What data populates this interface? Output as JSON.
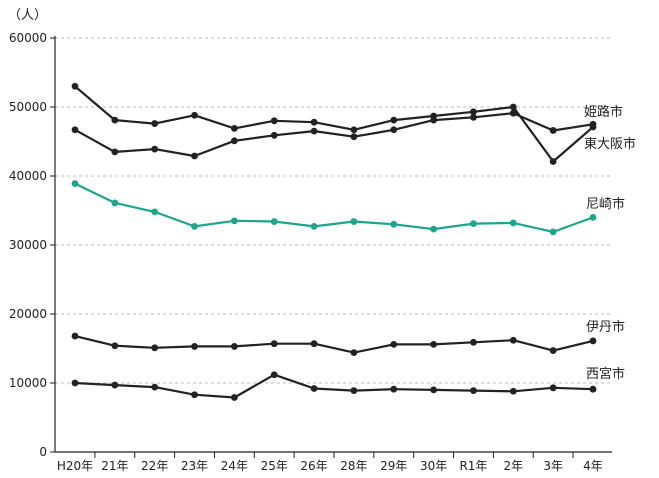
{
  "chart_data": {
    "type": "line",
    "unit_label": "（人）",
    "categories": [
      "H20年",
      "21年",
      "22年",
      "23年",
      "24年",
      "25年",
      "26年",
      "28年",
      "29年",
      "30年",
      "R1年",
      "2年",
      "3年",
      "4年"
    ],
    "ylim": [
      0,
      60000
    ],
    "yticks": [
      "0",
      "10000",
      "20000",
      "30000",
      "40000",
      "50000",
      "60000"
    ],
    "grid": "horizontal-dashed",
    "series": [
      {
        "name": "姫路市",
        "color": "#222222",
        "values": [
          53000,
          48100,
          47600,
          48800,
          46900,
          48000,
          47800,
          46700,
          48100,
          48700,
          49300,
          50000,
          42100,
          47100
        ]
      },
      {
        "name": "東大阪市",
        "color": "#222222",
        "values": [
          46700,
          43500,
          43900,
          42900,
          45100,
          45900,
          46500,
          45700,
          46700,
          48100,
          48500,
          49100,
          46600,
          47500
        ]
      },
      {
        "name": "尼崎市",
        "color": "#1fa58c",
        "values": [
          38900,
          36100,
          34800,
          32700,
          33500,
          33400,
          32700,
          33400,
          33000,
          32300,
          33100,
          33200,
          31900,
          34000
        ]
      },
      {
        "name": "伊丹市",
        "color": "#222222",
        "values": [
          16800,
          15400,
          15100,
          15300,
          15300,
          15700,
          15700,
          14400,
          15600,
          15600,
          15900,
          16200,
          14700,
          16100
        ]
      },
      {
        "name": "西宮市",
        "color": "#222222",
        "values": [
          10000,
          9700,
          9400,
          8300,
          7900,
          11200,
          9200,
          8900,
          9100,
          9000,
          8900,
          8800,
          9300,
          9100
        ]
      }
    ]
  }
}
